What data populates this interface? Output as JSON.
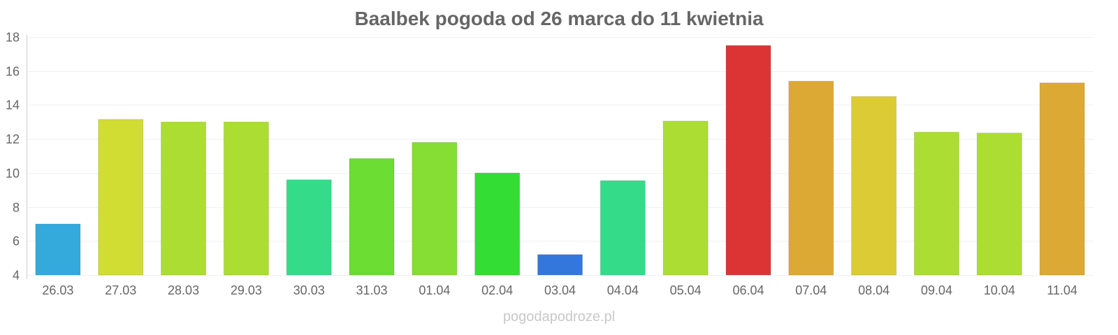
{
  "chart_data": {
    "type": "bar",
    "title": "Baalbek pogoda od 26 marca do 11 kwietnia",
    "xlabel": "",
    "ylabel": "",
    "ylim": [
      4,
      18
    ],
    "yticks": [
      4,
      6,
      8,
      10,
      12,
      14,
      16,
      18
    ],
    "grid": true,
    "categories": [
      "26.03",
      "27.03",
      "28.03",
      "29.03",
      "30.03",
      "31.03",
      "01.04",
      "02.04",
      "03.04",
      "04.04",
      "05.04",
      "06.04",
      "07.04",
      "08.04",
      "09.04",
      "10.04",
      "11.04"
    ],
    "values": [
      7.0,
      13.15,
      13.0,
      13.0,
      9.6,
      10.85,
      11.8,
      10.0,
      5.2,
      9.55,
      13.05,
      17.5,
      15.4,
      14.5,
      12.4,
      12.35,
      15.3
    ],
    "colors": [
      "#34a9dc",
      "#d1dd33",
      "#acdd33",
      "#acdd33",
      "#34dc8a",
      "#6bdd33",
      "#86dd33",
      "#33dd33",
      "#3477dc",
      "#34dc8a",
      "#acdd33",
      "#dc3434",
      "#dcaa34",
      "#dccb34",
      "#acdd33",
      "#acdd33",
      "#dcaa34"
    ]
  },
  "watermark": "pogodapodroze.pl"
}
